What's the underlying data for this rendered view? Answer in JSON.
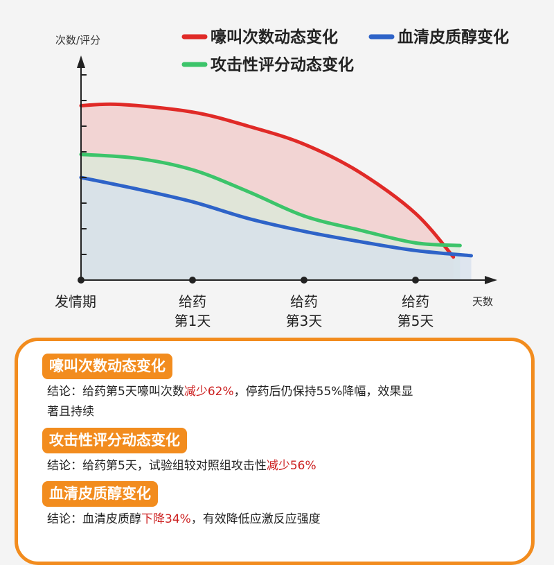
{
  "chart_data": {
    "type": "line",
    "ylabel": "次数/评分",
    "xlabel": "天数",
    "categories": [
      "发情期",
      "给药\n第1天",
      "给药\n第3天",
      "给药\n第5天"
    ],
    "x": [
      0,
      1,
      2,
      3
    ],
    "xlim": [
      0,
      3.75
    ],
    "ylim": [
      0,
      10
    ],
    "y_ticks": [
      1,
      2,
      3,
      4,
      5,
      6,
      7,
      8
    ],
    "grid": false,
    "legend_position": "top",
    "series": [
      {
        "name": "嚎叫次数动态变化",
        "color": "#e02a27",
        "fill": "#f2c9c8",
        "x": [
          0,
          0.35,
          1,
          1.5,
          2,
          2.5,
          3,
          3.34
        ],
        "values": [
          6.8,
          6.85,
          6.55,
          6.0,
          5.3,
          4.2,
          2.6,
          0.9
        ]
      },
      {
        "name": "攻击性评分动态变化",
        "color": "#3cc46a",
        "fill": "#d9ebd9",
        "x": [
          0,
          0.5,
          1,
          1.5,
          2,
          2.5,
          3,
          3.4
        ],
        "values": [
          4.9,
          4.75,
          4.3,
          3.45,
          2.5,
          1.95,
          1.45,
          1.35
        ]
      },
      {
        "name": "血清皮质醇变化",
        "color": "#2e63c8",
        "fill": "#d7e0ee",
        "x": [
          0,
          0.5,
          1,
          1.5,
          2,
          2.5,
          3,
          3.5
        ],
        "values": [
          4.0,
          3.55,
          3.05,
          2.4,
          1.9,
          1.5,
          1.15,
          0.95
        ]
      }
    ]
  },
  "sections": [
    {
      "title": "嚎叫次数动态变化",
      "line1_pre": "结论：给药第5天嚎叫次数",
      "line1_hl": "减少62%",
      "line1_post": "，停药后仍保持55%降幅，效果显",
      "line2": "著且持续"
    },
    {
      "title": "攻击性评分动态变化",
      "line1_pre": "结论：给药第5天，试验组较对照组攻击性",
      "line1_hl": "减少56%",
      "line1_post": ""
    },
    {
      "title": "血清皮质醇变化",
      "line1_pre": "结论：血清皮质醇",
      "line1_hl": "下降34%",
      "line1_post": "，有效降低应激反应强度"
    }
  ]
}
